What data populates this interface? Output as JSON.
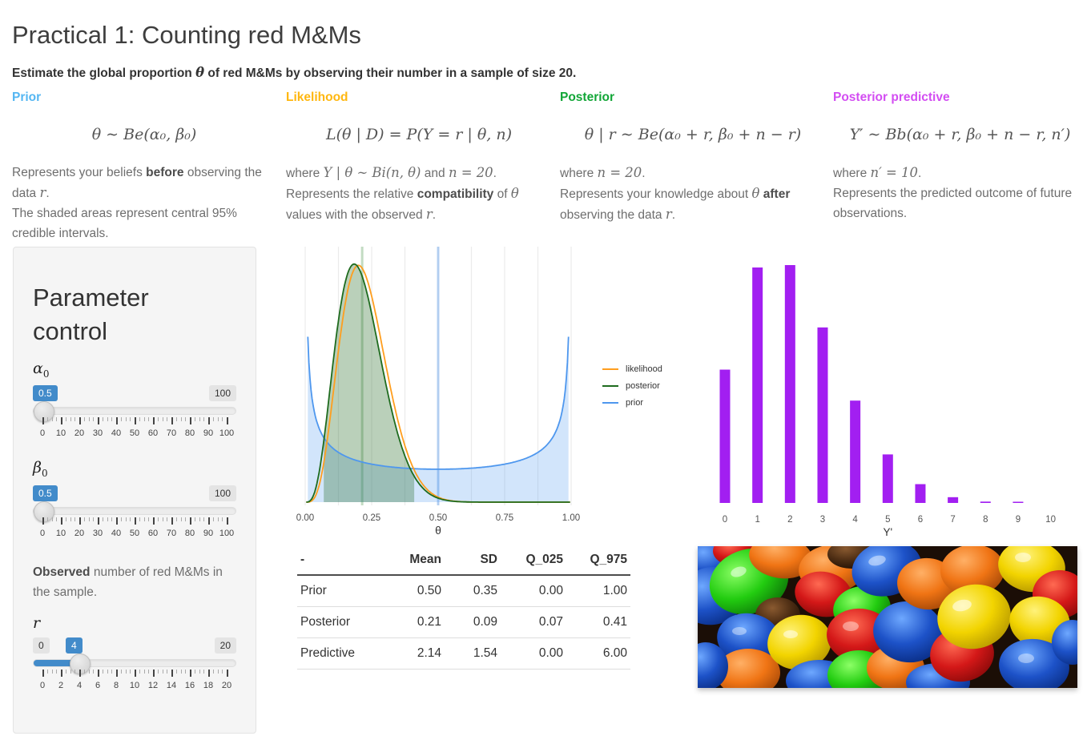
{
  "page": {
    "title": "Practical 1: Counting red M&Ms",
    "subtitle": [
      {
        "t": "Estimate the global proportion "
      },
      {
        "t": "θ"
      },
      {
        "t": " of red M&Ms by observing their number in a sample of size 20."
      }
    ]
  },
  "columns": [
    {
      "header": "Prior",
      "color": "#54B6F2",
      "formula": "θ ∼ Be(α₀, β₀)",
      "p1": [
        {
          "t": "Represents your beliefs "
        },
        {
          "t": "before"
        },
        {
          "t": " observing the data "
        },
        {
          "t": "r"
        },
        {
          "t": "."
        }
      ],
      "p2": [
        {
          "t": "The shaded areas represent central 95% credible intervals."
        }
      ]
    },
    {
      "header": "Likelihood",
      "color": "#FFB70F",
      "formula": "L(θ | D) = P(Y = r | θ, n)",
      "p1": [
        {
          "t": "where "
        },
        {
          "t": "Y | θ ∼ Bi(n, θ)"
        },
        {
          "t": " and "
        },
        {
          "t": "n = 20"
        },
        {
          "t": "."
        }
      ],
      "p2": [
        {
          "t": "Represents the relative "
        },
        {
          "t": "compatibility"
        },
        {
          "t": " of "
        },
        {
          "t": "θ"
        },
        {
          "t": " values with the observed "
        },
        {
          "t": "r"
        },
        {
          "t": "."
        }
      ]
    },
    {
      "header": "Posterior",
      "color": "#12A637",
      "formula": "θ | r ∼ Be(α₀ + r, β₀ + n − r)",
      "p1": [
        {
          "t": "where "
        },
        {
          "t": "n = 20"
        },
        {
          "t": "."
        }
      ],
      "p2": [
        {
          "t": "Represents your knowledge about "
        },
        {
          "t": "θ"
        },
        {
          "t": " "
        },
        {
          "t": "after"
        },
        {
          "t": " observing the data "
        },
        {
          "t": "r"
        },
        {
          "t": "."
        }
      ]
    },
    {
      "header": "Posterior predictive",
      "color": "#D34DF2",
      "formula": "Y′ ∼ Bb(α₀ + r, β₀ + n − r, n′)",
      "p1": [
        {
          "t": "where "
        },
        {
          "t": "n′ = 10"
        },
        {
          "t": "."
        }
      ],
      "p2": [
        {
          "t": "Represents the predicted outcome of future observations."
        }
      ]
    }
  ],
  "panel": {
    "heading": "Parameter control",
    "observed": [
      {
        "t": "Observed"
      },
      {
        "t": " number of red M&Ms in the sample."
      }
    ],
    "sliders": [
      {
        "name": "alpha0",
        "label": "α",
        "sub": "0",
        "value": "0.5",
        "min_badge": null,
        "max_badge": "100",
        "min": 0,
        "max": 100,
        "frac": 0.005,
        "filled": false,
        "axis": [
          "0",
          "10",
          "20",
          "30",
          "40",
          "50",
          "60",
          "70",
          "80",
          "90",
          "100"
        ]
      },
      {
        "name": "beta0",
        "label": "β",
        "sub": "0",
        "value": "0.5",
        "min_badge": null,
        "max_badge": "100",
        "min": 0,
        "max": 100,
        "frac": 0.005,
        "filled": false,
        "axis": [
          "0",
          "10",
          "20",
          "30",
          "40",
          "50",
          "60",
          "70",
          "80",
          "90",
          "100"
        ]
      },
      {
        "name": "r",
        "label": "r",
        "sub": "",
        "value": "4",
        "min_badge": "0",
        "max_badge": "20",
        "min": 0,
        "max": 20,
        "frac": 0.2,
        "filled": true,
        "axis": [
          "0",
          "2",
          "4",
          "6",
          "8",
          "10",
          "12",
          "14",
          "16",
          "18",
          "20"
        ]
      }
    ]
  },
  "chart_data": [
    {
      "type": "line",
      "title": "",
      "xlabel": "θ",
      "xlim": [
        0,
        1
      ],
      "ylim": [
        0,
        4.85
      ],
      "x_ticks": [
        "0.00",
        "0.25",
        "0.50",
        "0.75",
        "1.00"
      ],
      "grid": "vertical lines every 0.125",
      "legend_position": "right",
      "params": {
        "alpha0": 0.5,
        "beta0": 0.5,
        "r": 4,
        "n": 20
      },
      "series": [
        {
          "name": "likelihood",
          "color": "#FF9E1E",
          "distribution": "Beta(5, 17) (scaled binomial likelihood, r = 4, n = 20)",
          "x": [
            0,
            0.05,
            0.1,
            0.15,
            0.2,
            0.25,
            0.3,
            0.35,
            0.4,
            0.45,
            0.5,
            0.55,
            0.6,
            0.65,
            0.7
          ],
          "y": [
            0,
            0.28,
            1.89,
            3.83,
            4.58,
            3.98,
            2.74,
            1.55,
            0.74,
            0.29,
            0.1,
            0.03,
            0.006,
            0.001,
            0
          ]
        },
        {
          "name": "posterior",
          "color": "#1E6B1E",
          "distribution": "Beta(4.5, 16.5)",
          "x": [
            0,
            0.05,
            0.1,
            0.15,
            0.2,
            0.25,
            0.3,
            0.35,
            0.4,
            0.45,
            0.5,
            0.55,
            0.6,
            0.65,
            0.7
          ],
          "y": [
            0,
            0.51,
            2.49,
            4.24,
            4.54,
            3.64,
            2.37,
            1.29,
            0.59,
            0.23,
            0.08,
            0.02,
            0.005,
            0.001,
            0
          ]
        },
        {
          "name": "prior",
          "color": "#4E97EE",
          "distribution": "Beta(0.5, 0.5)",
          "x": [
            0.01,
            0.05,
            0.1,
            0.15,
            0.2,
            0.25,
            0.3,
            0.35,
            0.4,
            0.45,
            0.5,
            0.55,
            0.6,
            0.65,
            0.7,
            0.75,
            0.8,
            0.85,
            0.9,
            0.95,
            0.99
          ],
          "y": [
            3.2,
            1.46,
            1.06,
            0.89,
            0.8,
            0.74,
            0.69,
            0.67,
            0.65,
            0.64,
            0.64,
            0.64,
            0.65,
            0.67,
            0.69,
            0.74,
            0.8,
            0.89,
            1.06,
            1.46,
            3.2
          ]
        }
      ],
      "shaded_intervals": {
        "prior": [
          0.0,
          1.0
        ],
        "posterior": [
          0.07,
          0.41
        ]
      },
      "mean_lines": {
        "prior": 0.5,
        "posterior": 0.21
      }
    },
    {
      "type": "bar",
      "title": "",
      "xlabel": "Y'",
      "categories": [
        0,
        1,
        2,
        3,
        4,
        5,
        6,
        7,
        8,
        9,
        10
      ],
      "values": [
        0.139,
        0.2455,
        0.248,
        0.183,
        0.1067,
        0.0506,
        0.0196,
        0.006,
        0.0014,
        0.0003,
        2e-05
      ],
      "color": "#A21FF1",
      "distribution": "Beta-binomial(4.5, 16.5, n' = 10)",
      "ylim": [
        0,
        0.26
      ],
      "grid": "off"
    }
  ],
  "density_plot": {
    "xlabel": "θ",
    "x_ticks": [
      "0.00",
      "0.25",
      "0.50",
      "0.75",
      "1.00"
    ],
    "legend": [
      {
        "label": "likelihood",
        "color": "#FF9E1E"
      },
      {
        "label": "posterior",
        "color": "#1E6B1E"
      },
      {
        "label": "prior",
        "color": "#4E97EE"
      }
    ]
  },
  "bar_plot": {
    "xlabel": "Y'",
    "x_ticks": [
      "0",
      "1",
      "2",
      "3",
      "4",
      "5",
      "6",
      "7",
      "8",
      "9",
      "10"
    ]
  },
  "table": {
    "headers": [
      "-",
      "Mean",
      "SD",
      "Q_025",
      "Q_975"
    ],
    "rows": [
      [
        "Prior",
        "0.50",
        "0.35",
        "0.00",
        "1.00"
      ],
      [
        "Posterior",
        "0.21",
        "0.09",
        "0.07",
        "0.41"
      ],
      [
        "Predictive",
        "2.14",
        "1.54",
        "0.00",
        "6.00"
      ]
    ]
  },
  "photo": {
    "alt": "Pile of colorful chocolate candies (red, blue, green, yellow, orange)"
  }
}
